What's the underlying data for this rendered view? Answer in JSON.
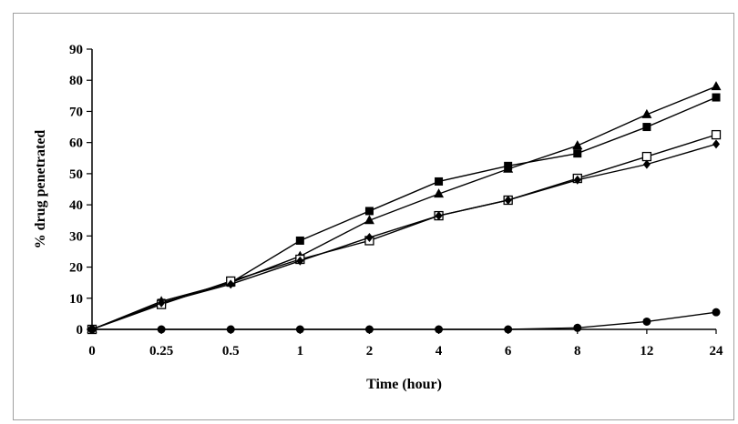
{
  "chart_data": {
    "type": "line",
    "title": "",
    "xlabel": "Time (hour)",
    "ylabel": "% drug penetrated",
    "categories": [
      "0",
      "0.25",
      "0.5",
      "1",
      "2",
      "4",
      "6",
      "8",
      "12",
      "24"
    ],
    "ylim": [
      0,
      90
    ],
    "yticks": [
      0,
      10,
      20,
      30,
      40,
      50,
      60,
      70,
      80,
      90
    ],
    "grid": false,
    "legend": "none",
    "series": [
      {
        "marker": "triangle",
        "color": "#000000",
        "values": [
          0,
          9,
          15,
          23.5,
          35,
          43.5,
          51.5,
          59,
          69,
          78
        ]
      },
      {
        "marker": "square-filled",
        "color": "#000000",
        "values": [
          0,
          8.5,
          15,
          28.5,
          38,
          47.5,
          52.5,
          56.5,
          65,
          74.5
        ]
      },
      {
        "marker": "square-open",
        "color": "#000000",
        "values": [
          0,
          8,
          15.5,
          22.5,
          28.5,
          36.5,
          41.5,
          48.5,
          55.5,
          62.5
        ]
      },
      {
        "marker": "diamond",
        "color": "#000000",
        "values": [
          0,
          8.5,
          14.5,
          22,
          29.5,
          36.5,
          41.5,
          48,
          53,
          59.5
        ]
      },
      {
        "marker": "circle",
        "color": "#000000",
        "values": [
          0,
          0,
          0,
          0,
          0,
          0,
          0,
          0.5,
          2.5,
          5.5
        ]
      }
    ]
  }
}
